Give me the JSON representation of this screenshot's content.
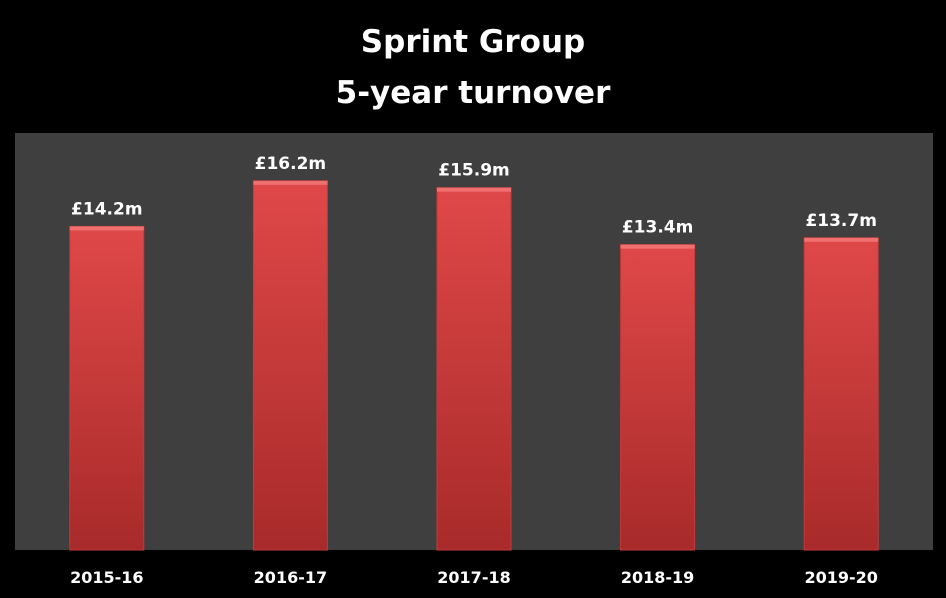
{
  "chart_data": {
    "type": "bar",
    "title": "Sprint Group",
    "subtitle": "5-year turnover",
    "categories": [
      "2015-16",
      "2016-17",
      "2017-18",
      "2018-19",
      "2019-20"
    ],
    "values": [
      14.2,
      16.2,
      15.9,
      13.4,
      13.7
    ],
    "data_labels": [
      "£14.2m",
      "£16.2m",
      "£15.9m",
      "£13.4m",
      "£13.7m"
    ],
    "xlabel": "",
    "ylabel": "",
    "ylim": [
      0,
      18.3
    ],
    "grid": false,
    "legend": "none"
  },
  "colors": {
    "page_background": "#000000",
    "plot_background": "#3f3f3f",
    "bar_fill_top": "#e04848",
    "bar_fill_bottom": "#a82a2a",
    "text": "#ffffff"
  }
}
